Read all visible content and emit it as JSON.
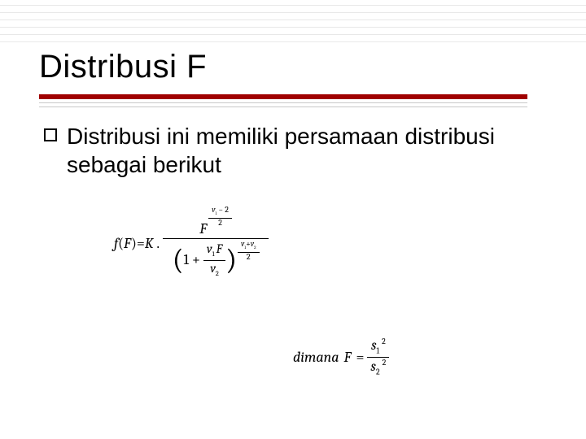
{
  "title": "Distribusi F",
  "bullet": "Distribusi ini memiliki persamaan distribusi sebagai berikut",
  "ruled_line_count": 6,
  "ruled_line_gap": 9,
  "colors": {
    "background": "#ffffff",
    "text": "#000000",
    "accent_red": "#a00000",
    "rule_gray": "#e8e8e8",
    "thin_gray": "#c8c8c8"
  },
  "typography": {
    "title_fontsize": 40,
    "body_fontsize": 28,
    "formula_fontsize": 18,
    "font_family_ui": "Verdana",
    "font_family_math": "Cambria"
  },
  "formula1": {
    "lhs_f": "f",
    "lhs_paren_open": "(",
    "lhs_F": "F",
    "lhs_paren_close": ")",
    "eq": " = ",
    "K": "K",
    "dot": ".",
    "num_F": "F",
    "exp_top_num": "v",
    "exp_top_sub1": "1",
    "exp_top_minus": "− 2",
    "exp_top_den": "2",
    "den_one": "1",
    "den_plus": "+",
    "den_frac_num_v": "v",
    "den_frac_num_sub": "1",
    "den_frac_num_F": "F",
    "den_frac_den_v": "v",
    "den_frac_den_sub": "2",
    "outer_exp_num": "v",
    "outer_exp_sub1": "1",
    "outer_exp_plus": "+",
    "outer_exp_v2": "v",
    "outer_exp_sub2": "2",
    "outer_exp_den": "2"
  },
  "formula2": {
    "dimana": "dimana",
    "F": "F",
    "eq": " = ",
    "num_s": "s",
    "num_sub": "1",
    "num_sup": "2",
    "den_s": "s",
    "den_sub": "2",
    "den_sup": "2"
  }
}
